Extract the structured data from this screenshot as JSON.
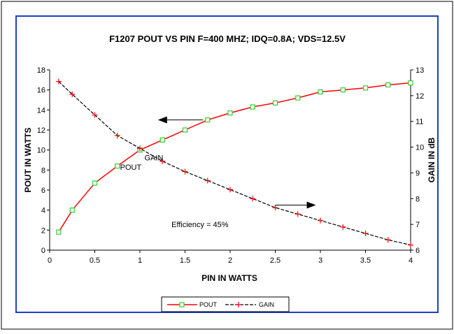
{
  "colors": {
    "frame_border": "#000000",
    "plot_border": "#1f3fbf",
    "pout": "#ff0000",
    "pout_marker": "#33cc33",
    "gain": "#000000",
    "gain_marker": "#ff0000"
  },
  "chart_data": {
    "type": "line",
    "title": "F1207 POUT VS PIN  F=400 MHZ; IDQ=0.8A; VDS=12.5V",
    "xlabel": "PIN IN WATTS",
    "ylabel": "POUT IN WATTS",
    "y2label": "GAIN IN dB",
    "xlim": [
      0,
      4
    ],
    "ylim": [
      0,
      18
    ],
    "y2lim": [
      6,
      13
    ],
    "x_ticks": [
      "0",
      "0.5",
      "1",
      "1.5",
      "2",
      "2.5",
      "3",
      "3.5",
      "4"
    ],
    "y_ticks": [
      "0",
      "2",
      "4",
      "6",
      "8",
      "10",
      "12",
      "14",
      "16",
      "18"
    ],
    "y2_ticks": [
      "6",
      "7",
      "8",
      "9",
      "10",
      "11",
      "12",
      "13"
    ],
    "grid": false,
    "legend_position": "bottom",
    "series": [
      {
        "name": "POUT",
        "axis": "left",
        "x": [
          0.1,
          0.25,
          0.5,
          0.75,
          1.0,
          1.25,
          1.5,
          1.75,
          2.0,
          2.25,
          2.5,
          2.75,
          3.0,
          3.25,
          3.5,
          3.75,
          4.0
        ],
        "values": [
          1.8,
          4.0,
          6.7,
          8.4,
          10.0,
          11.0,
          12.0,
          13.0,
          13.7,
          14.3,
          14.7,
          15.2,
          15.8,
          16.0,
          16.2,
          16.5,
          16.7
        ]
      },
      {
        "name": "GAIN",
        "axis": "right",
        "x": [
          0.1,
          0.25,
          0.5,
          0.75,
          1.0,
          1.25,
          1.5,
          1.75,
          2.0,
          2.25,
          2.5,
          2.75,
          3.0,
          3.25,
          3.5,
          3.75,
          4.0
        ],
        "values": [
          12.55,
          12.05,
          11.25,
          10.45,
          9.95,
          9.45,
          9.05,
          8.7,
          8.35,
          8.0,
          7.65,
          7.4,
          7.15,
          6.9,
          6.65,
          6.4,
          6.2
        ]
      }
    ],
    "annotations": [
      {
        "text": "POUT",
        "x": 0.78,
        "y": 8.3,
        "axis": "left"
      },
      {
        "text": "GAIN",
        "x": 1.05,
        "y": 9.6,
        "axis": "right"
      },
      {
        "text": "Efficiency = 45%",
        "x": 1.35,
        "y": 7.0,
        "axis": "right"
      }
    ],
    "arrows": [
      {
        "direction": "left",
        "x_from": 1.7,
        "x_to": 1.2,
        "y": 13.0,
        "axis": "left"
      },
      {
        "direction": "right",
        "x_from": 2.5,
        "x_to": 2.95,
        "y": 7.75,
        "axis": "right"
      }
    ]
  }
}
